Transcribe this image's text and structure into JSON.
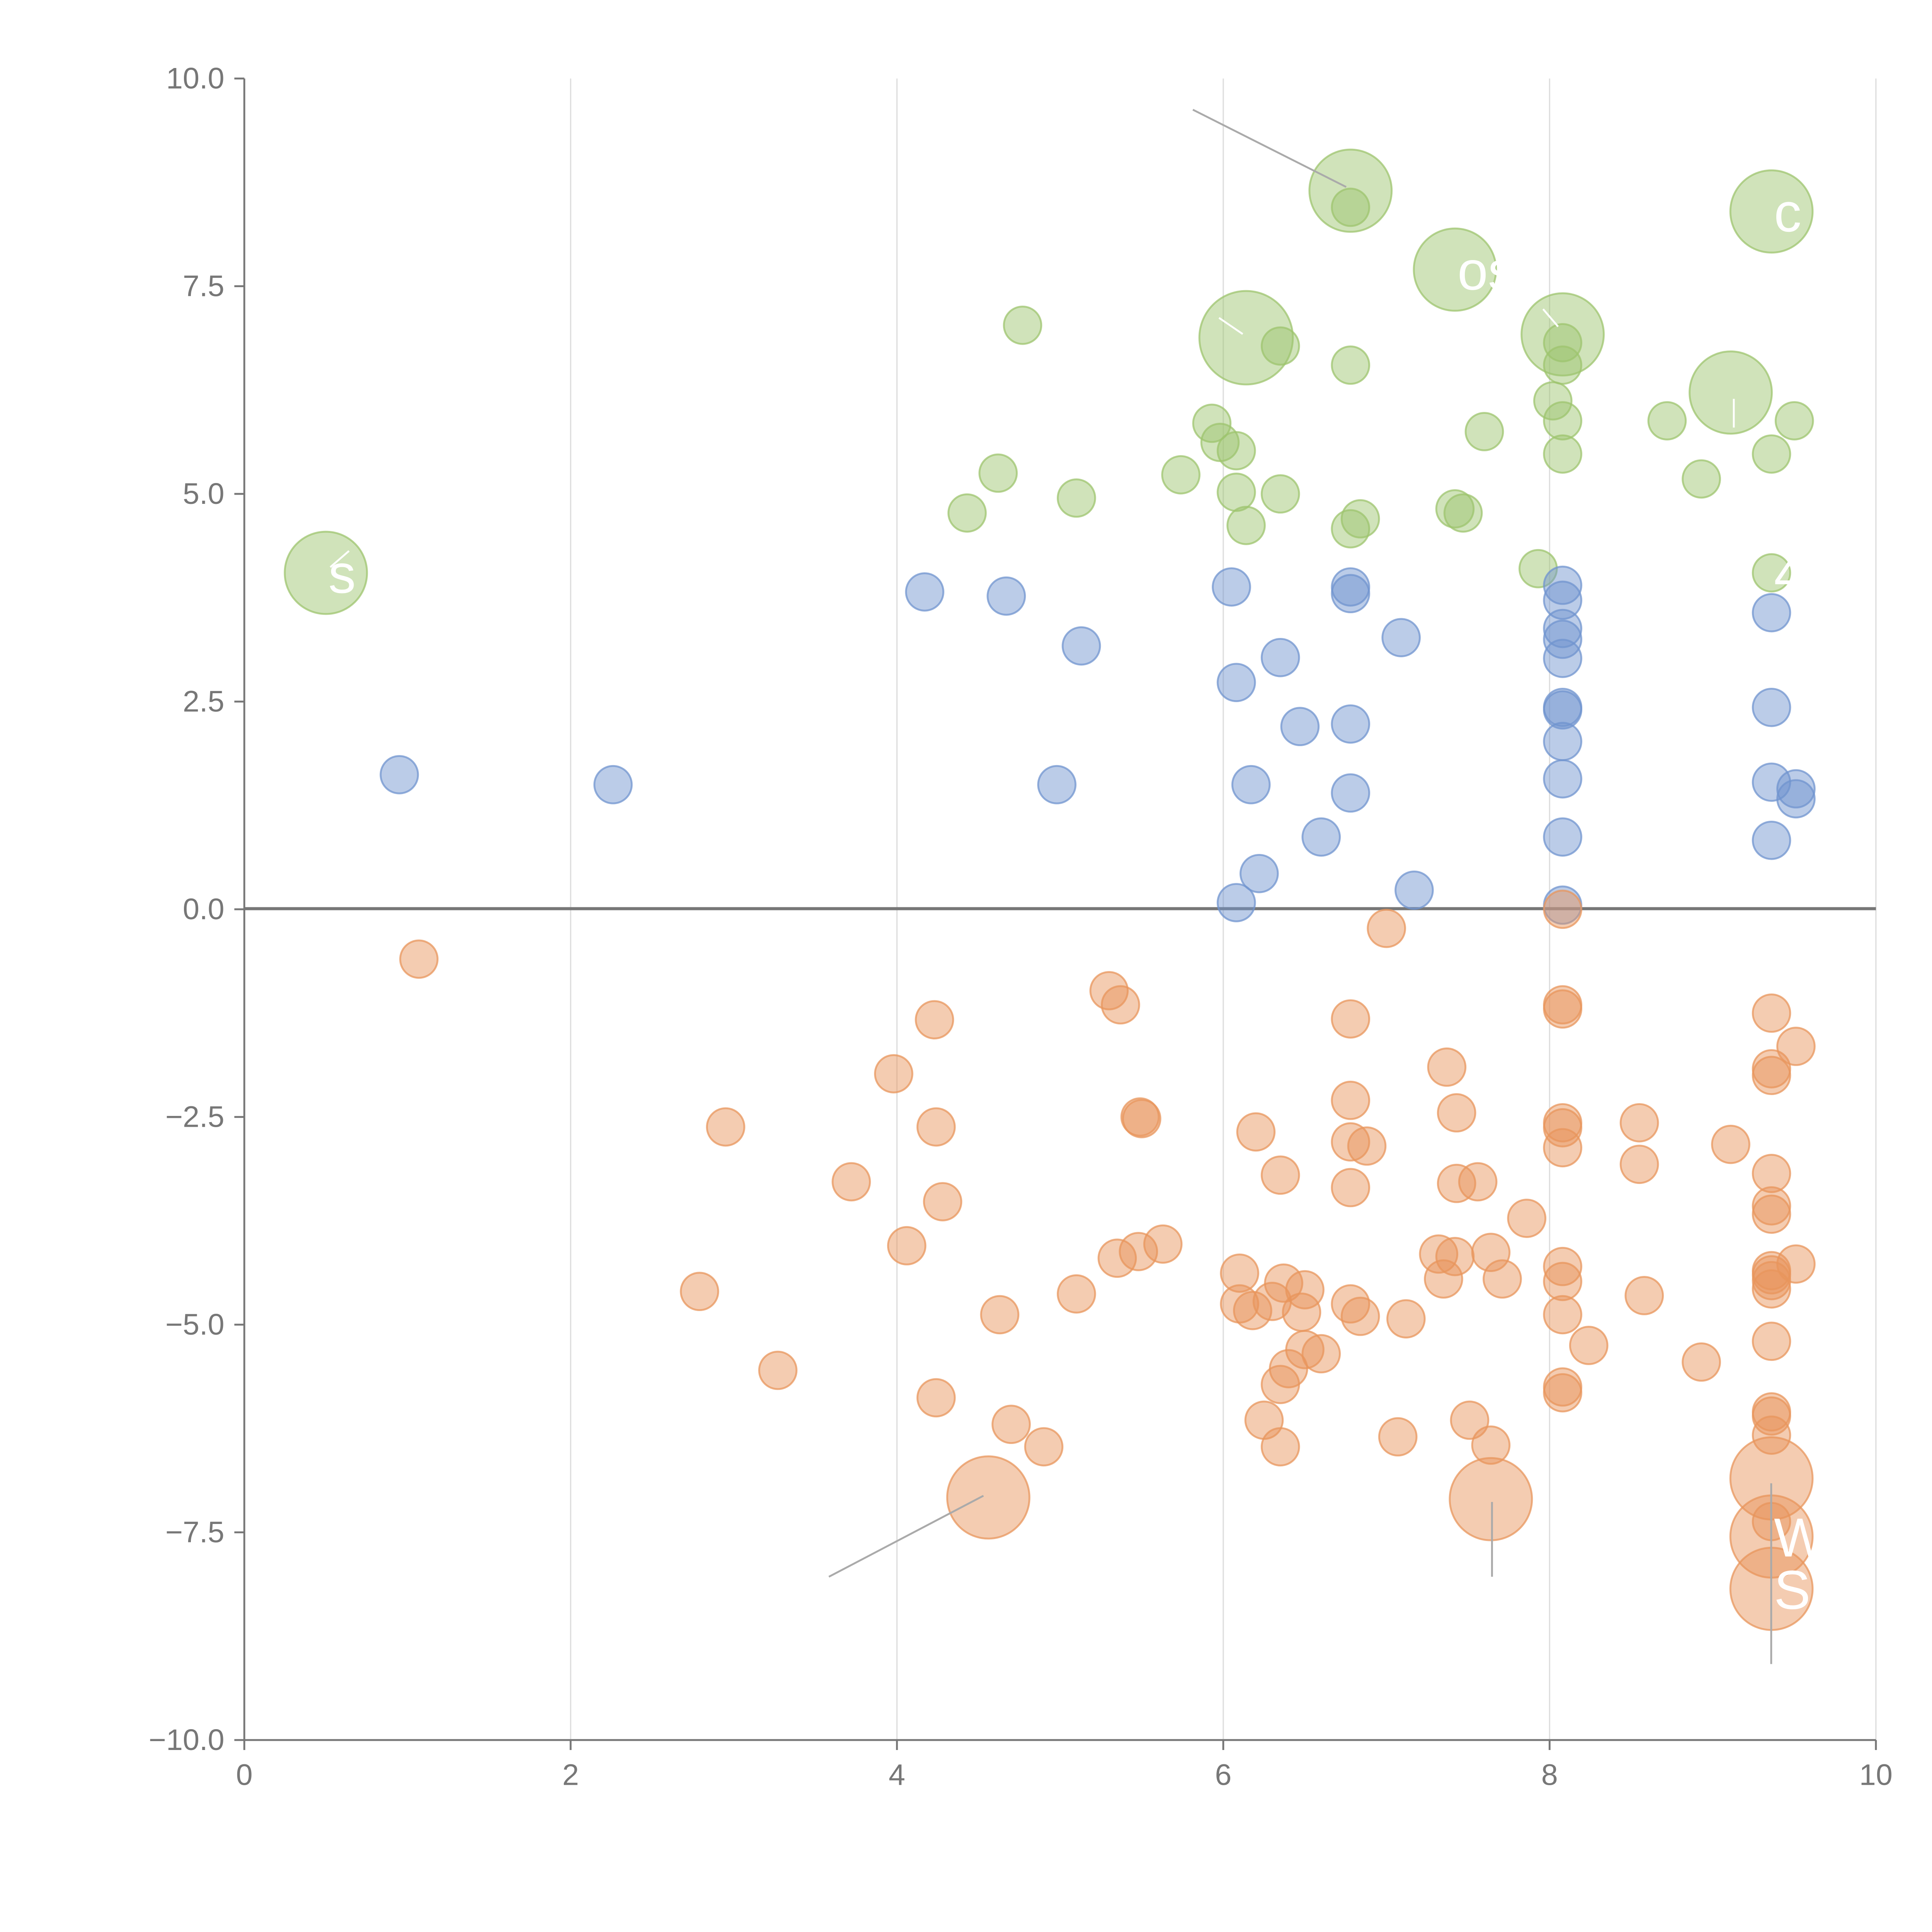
{
  "chart_data": {
    "type": "scatter",
    "title": "",
    "xlabel": "",
    "ylabel": "",
    "xlim": [
      0,
      10
    ],
    "ylim": [
      -10,
      10
    ],
    "x_ticks": [
      "0",
      "2",
      "4",
      "6",
      "8",
      "10"
    ],
    "y_ticks": [
      "10.0",
      "7.5",
      "5.0",
      "2.5",
      "0.0",
      "−2.5",
      "−5.0",
      "−7.5",
      "−10.0"
    ],
    "x_tick_values": [
      0,
      2,
      4,
      6,
      8,
      10
    ],
    "y_tick_values": [
      10,
      7.5,
      5,
      2.5,
      0,
      -2.5,
      -5,
      -7.5,
      -10
    ],
    "grid": "vertical",
    "zero_line": 0,
    "colors": {
      "green": "#9dc46e",
      "blue": "#7094cf",
      "orange": "#e8955c",
      "axis": "#777777",
      "grid": "#dddddd",
      "leader": "#aaaaaa"
    },
    "series": [
      {
        "color": "#9dc46e",
        "points": [
          [
            0.5,
            4.05,
            2.2
          ],
          [
            6.78,
            8.65,
            2.2
          ],
          [
            6.78,
            8.45,
            1
          ],
          [
            7.42,
            7.7,
            2.2
          ],
          [
            6.14,
            6.88,
            2.5
          ],
          [
            8.08,
            6.92,
            2.2
          ],
          [
            9.36,
            8.4,
            2.2
          ],
          [
            9.11,
            6.22,
            2.2
          ],
          [
            4.77,
            7.03,
            1
          ],
          [
            6.35,
            6.78,
            1
          ],
          [
            6.78,
            6.55,
            1
          ],
          [
            8.08,
            6.82,
            1
          ],
          [
            8.08,
            6.55,
            1
          ],
          [
            8.02,
            6.12,
            1
          ],
          [
            8.08,
            5.88,
            1
          ],
          [
            8.08,
            5.48,
            1
          ],
          [
            7.6,
            5.75,
            1
          ],
          [
            8.72,
            5.88,
            1
          ],
          [
            9.5,
            5.88,
            1
          ],
          [
            9.36,
            5.48,
            1
          ],
          [
            8.93,
            5.18,
            1
          ],
          [
            5.93,
            5.85,
            1
          ],
          [
            5.98,
            5.62,
            1
          ],
          [
            6.08,
            5.52,
            1
          ],
          [
            5.74,
            5.23,
            1
          ],
          [
            4.62,
            5.25,
            1
          ],
          [
            5.1,
            4.95,
            1
          ],
          [
            4.43,
            4.77,
            1
          ],
          [
            6.08,
            5.02,
            1
          ],
          [
            6.35,
            5.0,
            1
          ],
          [
            6.14,
            4.62,
            1
          ],
          [
            6.78,
            4.58,
            1
          ],
          [
            6.84,
            4.7,
            1
          ],
          [
            7.42,
            4.82,
            1
          ],
          [
            7.47,
            4.77,
            1
          ],
          [
            7.93,
            4.1,
            1
          ],
          [
            9.36,
            4.05,
            1
          ]
        ]
      },
      {
        "color": "#7094cf",
        "points": [
          [
            0.95,
            1.62,
            1
          ],
          [
            2.26,
            1.5,
            1
          ],
          [
            4.17,
            3.82,
            1
          ],
          [
            4.67,
            3.77,
            1
          ],
          [
            5.13,
            3.17,
            1
          ],
          [
            4.98,
            1.5,
            1
          ],
          [
            6.05,
            3.88,
            1
          ],
          [
            6.35,
            3.03,
            1
          ],
          [
            6.08,
            2.73,
            1
          ],
          [
            6.47,
            2.2,
            1
          ],
          [
            6.78,
            3.88,
            1
          ],
          [
            6.78,
            3.8,
            1
          ],
          [
            6.78,
            2.23,
            1
          ],
          [
            6.78,
            1.4,
            1
          ],
          [
            7.09,
            3.27,
            1
          ],
          [
            6.17,
            1.5,
            1
          ],
          [
            6.6,
            0.87,
            1
          ],
          [
            6.22,
            0.43,
            1
          ],
          [
            6.08,
            0.08,
            1
          ],
          [
            7.17,
            0.23,
            1
          ],
          [
            8.08,
            3.9,
            1
          ],
          [
            8.08,
            3.72,
            1
          ],
          [
            8.08,
            3.38,
            1
          ],
          [
            8.08,
            3.25,
            1
          ],
          [
            8.08,
            3.02,
            1
          ],
          [
            8.08,
            2.43,
            1
          ],
          [
            8.08,
            2.4,
            1
          ],
          [
            8.08,
            2.02,
            1
          ],
          [
            8.08,
            1.57,
            1
          ],
          [
            8.08,
            0.87,
            1
          ],
          [
            8.08,
            0.05,
            1
          ],
          [
            9.36,
            3.57,
            1
          ],
          [
            9.36,
            2.43,
            1
          ],
          [
            9.36,
            1.53,
            1
          ],
          [
            9.51,
            1.45,
            1
          ],
          [
            9.51,
            1.33,
            1
          ],
          [
            9.36,
            0.83,
            1
          ]
        ]
      },
      {
        "color": "#e8955c",
        "points": [
          [
            1.07,
            -0.6,
            1
          ],
          [
            2.95,
            -2.62,
            1
          ],
          [
            2.79,
            -4.6,
            1
          ],
          [
            3.27,
            -5.55,
            1
          ],
          [
            3.72,
            -3.28,
            1
          ],
          [
            3.98,
            -1.98,
            1
          ],
          [
            4.06,
            -4.05,
            1
          ],
          [
            4.23,
            -1.33,
            1
          ],
          [
            4.24,
            -2.62,
            1
          ],
          [
            4.28,
            -3.52,
            1
          ],
          [
            4.24,
            -5.88,
            1
          ],
          [
            4.56,
            -7.08,
            2.2
          ],
          [
            4.63,
            -4.88,
            1
          ],
          [
            4.7,
            -6.2,
            1
          ],
          [
            4.9,
            -6.47,
            1
          ],
          [
            5.1,
            -4.63,
            1
          ],
          [
            5.3,
            -0.98,
            1
          ],
          [
            5.37,
            -1.15,
            1
          ],
          [
            5.49,
            -2.5,
            1
          ],
          [
            5.5,
            -2.52,
            1
          ],
          [
            5.35,
            -4.2,
            1
          ],
          [
            5.48,
            -4.12,
            1
          ],
          [
            5.63,
            -4.03,
            1
          ],
          [
            6.1,
            -4.38,
            1
          ],
          [
            6.1,
            -4.75,
            1
          ],
          [
            6.18,
            -4.83,
            1
          ],
          [
            6.2,
            -2.68,
            1
          ],
          [
            6.35,
            -3.2,
            1
          ],
          [
            6.25,
            -6.15,
            1
          ],
          [
            6.35,
            -6.47,
            1
          ],
          [
            6.35,
            -5.72,
            1
          ],
          [
            6.4,
            -5.53,
            1
          ],
          [
            6.37,
            -4.5,
            1
          ],
          [
            6.3,
            -4.72,
            1
          ],
          [
            6.48,
            -4.85,
            1
          ],
          [
            6.5,
            -4.58,
            1
          ],
          [
            6.5,
            -5.3,
            1
          ],
          [
            6.6,
            -5.35,
            1
          ],
          [
            6.78,
            -1.32,
            1
          ],
          [
            6.78,
            -2.3,
            1
          ],
          [
            6.78,
            -2.8,
            1
          ],
          [
            6.88,
            -2.85,
            1
          ],
          [
            6.78,
            -3.35,
            1
          ],
          [
            6.78,
            -4.75,
            1
          ],
          [
            6.84,
            -4.9,
            1
          ],
          [
            7.0,
            -0.23,
            1
          ],
          [
            7.07,
            -6.35,
            1
          ],
          [
            7.12,
            -4.93,
            1
          ],
          [
            7.37,
            -1.9,
            1
          ],
          [
            7.43,
            -2.45,
            1
          ],
          [
            7.43,
            -3.3,
            1
          ],
          [
            7.56,
            -3.28,
            1
          ],
          [
            7.32,
            -4.15,
            1
          ],
          [
            7.42,
            -4.18,
            1
          ],
          [
            7.35,
            -4.45,
            1
          ],
          [
            7.51,
            -6.15,
            1
          ],
          [
            7.64,
            -6.45,
            1
          ],
          [
            7.64,
            -7.1,
            2.2
          ],
          [
            7.64,
            -4.13,
            1
          ],
          [
            7.71,
            -4.45,
            1
          ],
          [
            7.86,
            -3.72,
            1
          ],
          [
            8.08,
            0.0,
            1
          ],
          [
            8.08,
            -1.15,
            1
          ],
          [
            8.08,
            -1.2,
            1
          ],
          [
            8.08,
            -2.57,
            1
          ],
          [
            8.08,
            -2.63,
            1
          ],
          [
            8.08,
            -2.87,
            1
          ],
          [
            8.08,
            -4.3,
            1
          ],
          [
            8.08,
            -4.48,
            1
          ],
          [
            8.08,
            -4.88,
            1
          ],
          [
            8.08,
            -5.75,
            1
          ],
          [
            8.08,
            -5.82,
            1
          ],
          [
            8.24,
            -5.25,
            1
          ],
          [
            8.55,
            -2.57,
            1
          ],
          [
            8.55,
            -3.07,
            1
          ],
          [
            8.58,
            -4.65,
            1
          ],
          [
            8.93,
            -5.45,
            1
          ],
          [
            9.11,
            -2.83,
            1
          ],
          [
            9.36,
            -1.25,
            1
          ],
          [
            9.36,
            -1.92,
            1
          ],
          [
            9.36,
            -2.0,
            1
          ],
          [
            9.51,
            -1.65,
            1
          ],
          [
            9.36,
            -3.18,
            1
          ],
          [
            9.36,
            -3.57,
            1
          ],
          [
            9.36,
            -3.67,
            1
          ],
          [
            9.36,
            -4.35,
            1
          ],
          [
            9.36,
            -4.4,
            1
          ],
          [
            9.36,
            -4.47,
            1
          ],
          [
            9.36,
            -4.57,
            1
          ],
          [
            9.51,
            -4.27,
            1
          ],
          [
            9.36,
            -5.2,
            1
          ],
          [
            9.36,
            -6.05,
            1
          ],
          [
            9.36,
            -6.1,
            1
          ],
          [
            9.36,
            -6.33,
            1
          ],
          [
            9.36,
            -6.85,
            2.2
          ],
          [
            9.36,
            -7.37,
            1
          ],
          [
            9.36,
            -7.55,
            2.2
          ],
          [
            9.36,
            -8.18,
            2.2
          ]
        ]
      }
    ],
    "annotations": [
      {
        "text": "c",
        "x": 9.36,
        "y": 8.4
      },
      {
        "text": "os",
        "x": 7.42,
        "y": 7.7
      },
      {
        "text": "s",
        "x": 0.5,
        "y": 4.05
      },
      {
        "text": "4",
        "x": 9.36,
        "y": 4.05
      },
      {
        "text": "W",
        "x": 9.36,
        "y": -7.55
      },
      {
        "text": "S",
        "x": 9.36,
        "y": -8.18
      }
    ]
  }
}
